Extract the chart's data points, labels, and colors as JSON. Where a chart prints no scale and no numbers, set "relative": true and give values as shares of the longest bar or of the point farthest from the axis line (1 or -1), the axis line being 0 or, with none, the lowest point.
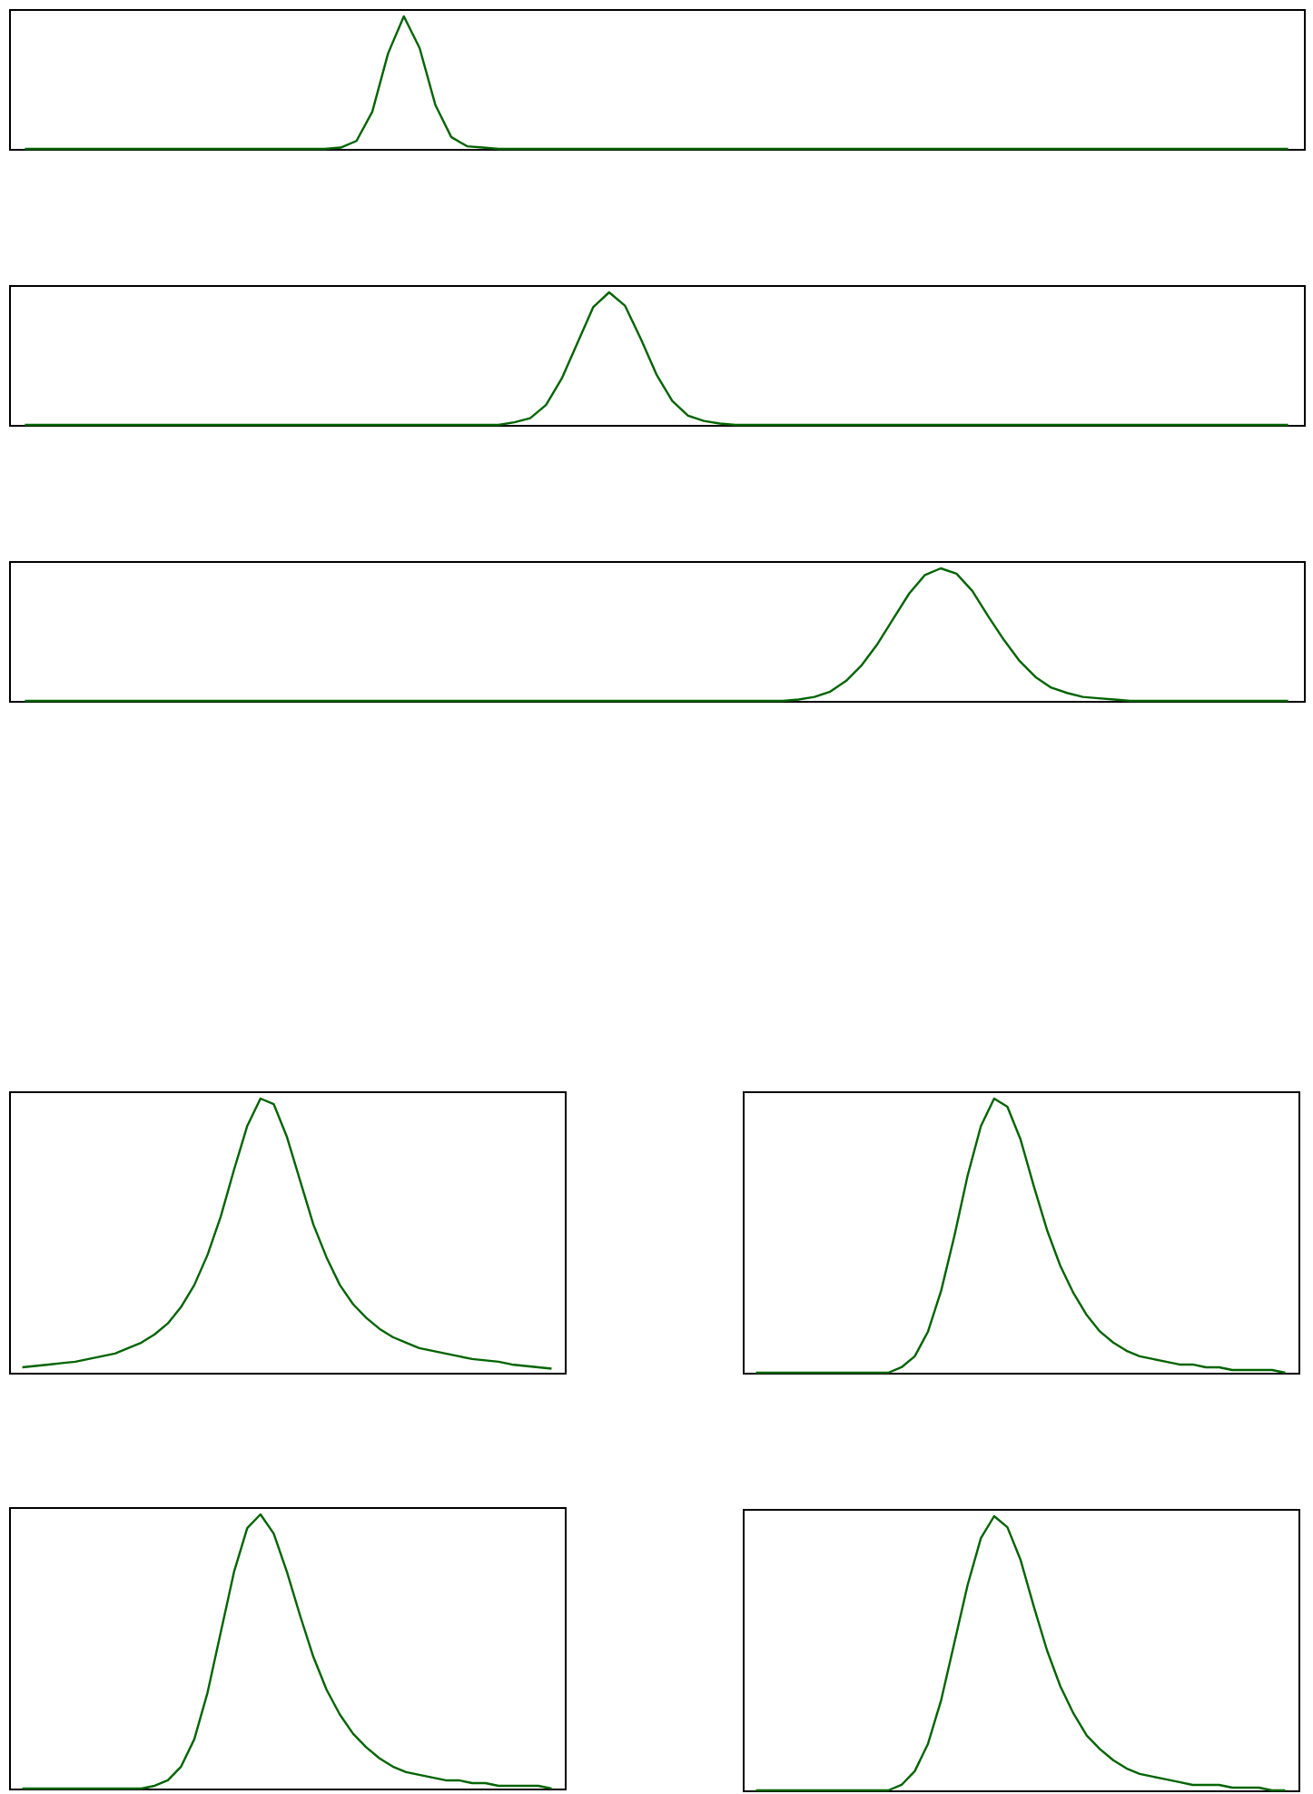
{
  "chart_data": [
    {
      "type": "line",
      "relative": true,
      "categories": [
        null,
        null,
        null,
        null,
        null,
        null,
        null,
        null,
        null,
        null,
        null,
        null,
        null,
        null,
        null,
        null,
        null,
        null,
        null,
        null,
        null,
        null,
        null,
        null,
        null,
        null,
        null,
        null,
        null,
        null,
        null,
        null,
        null,
        null,
        null,
        null,
        null,
        null,
        null,
        null,
        null,
        null,
        null,
        null,
        null,
        null,
        null,
        null,
        null,
        null,
        null,
        null,
        null,
        null,
        null,
        null,
        null,
        null,
        null,
        null,
        null,
        null,
        null,
        null,
        null,
        null,
        null,
        null,
        null,
        null,
        null,
        null,
        null,
        null,
        null,
        null,
        null,
        null,
        null,
        null,
        null
      ],
      "series": [
        {
          "color": "#006400",
          "values": [
            0,
            0,
            0,
            0,
            0,
            0,
            0,
            0,
            0,
            0,
            0,
            0,
            0,
            0,
            0,
            0,
            0,
            0,
            0,
            0,
            0.01,
            0.06,
            0.28,
            0.72,
            1,
            0.76,
            0.33,
            0.09,
            0.02,
            0.01,
            0,
            0,
            0,
            0,
            0,
            0,
            0,
            0,
            0,
            0,
            0,
            0,
            0,
            0,
            0,
            0,
            0,
            0,
            0,
            0,
            0,
            0,
            0,
            0,
            0,
            0,
            0,
            0,
            0,
            0,
            0,
            0,
            0,
            0,
            0,
            0,
            0,
            0,
            0,
            0,
            0,
            0,
            0,
            0,
            0,
            0,
            0,
            0,
            0,
            0,
            0
          ]
        }
      ]
    },
    {
      "type": "line",
      "relative": true,
      "categories": [
        null,
        null,
        null,
        null,
        null,
        null,
        null,
        null,
        null,
        null,
        null,
        null,
        null,
        null,
        null,
        null,
        null,
        null,
        null,
        null,
        null,
        null,
        null,
        null,
        null,
        null,
        null,
        null,
        null,
        null,
        null,
        null,
        null,
        null,
        null,
        null,
        null,
        null,
        null,
        null,
        null,
        null,
        null,
        null,
        null,
        null,
        null,
        null,
        null,
        null,
        null,
        null,
        null,
        null,
        null,
        null,
        null,
        null,
        null,
        null,
        null,
        null,
        null,
        null,
        null,
        null,
        null,
        null,
        null,
        null,
        null,
        null,
        null,
        null,
        null,
        null,
        null,
        null,
        null,
        null,
        null
      ],
      "series": [
        {
          "color": "#006400",
          "values": [
            0,
            0,
            0,
            0,
            0,
            0,
            0,
            0,
            0,
            0,
            0,
            0,
            0,
            0,
            0,
            0,
            0,
            0,
            0,
            0,
            0,
            0,
            0,
            0,
            0,
            0,
            0,
            0,
            0,
            0,
            0,
            0.02,
            0.05,
            0.15,
            0.35,
            0.62,
            0.89,
            1,
            0.9,
            0.65,
            0.38,
            0.18,
            0.07,
            0.03,
            0.01,
            0,
            0,
            0,
            0,
            0,
            0,
            0,
            0,
            0,
            0,
            0,
            0,
            0,
            0,
            0,
            0,
            0,
            0,
            0,
            0,
            0,
            0,
            0,
            0,
            0,
            0,
            0,
            0,
            0,
            0,
            0,
            0,
            0,
            0,
            0,
            0
          ]
        }
      ]
    },
    {
      "type": "line",
      "relative": true,
      "categories": [
        null,
        null,
        null,
        null,
        null,
        null,
        null,
        null,
        null,
        null,
        null,
        null,
        null,
        null,
        null,
        null,
        null,
        null,
        null,
        null,
        null,
        null,
        null,
        null,
        null,
        null,
        null,
        null,
        null,
        null,
        null,
        null,
        null,
        null,
        null,
        null,
        null,
        null,
        null,
        null,
        null,
        null,
        null,
        null,
        null,
        null,
        null,
        null,
        null,
        null,
        null,
        null,
        null,
        null,
        null,
        null,
        null,
        null,
        null,
        null,
        null,
        null,
        null,
        null,
        null,
        null,
        null,
        null,
        null,
        null,
        null,
        null,
        null,
        null,
        null,
        null,
        null,
        null,
        null,
        null,
        null
      ],
      "series": [
        {
          "color": "#006400",
          "values": [
            0,
            0,
            0,
            0,
            0,
            0,
            0,
            0,
            0,
            0,
            0,
            0,
            0,
            0,
            0,
            0,
            0,
            0,
            0,
            0,
            0,
            0,
            0,
            0,
            0,
            0,
            0,
            0,
            0,
            0,
            0,
            0,
            0,
            0,
            0,
            0,
            0,
            0,
            0,
            0,
            0,
            0,
            0,
            0,
            0,
            0,
            0,
            0,
            0,
            0.01,
            0.03,
            0.07,
            0.15,
            0.27,
            0.43,
            0.62,
            0.81,
            0.95,
            1,
            0.96,
            0.83,
            0.64,
            0.46,
            0.3,
            0.18,
            0.1,
            0.06,
            0.03,
            0.02,
            0.01,
            0,
            0,
            0,
            0,
            0,
            0,
            0,
            0,
            0,
            0,
            0
          ]
        }
      ]
    },
    {
      "type": "line",
      "relative": true,
      "categories": [
        null,
        null,
        null,
        null,
        null,
        null,
        null,
        null,
        null,
        null,
        null,
        null,
        null,
        null,
        null,
        null,
        null,
        null,
        null,
        null,
        null,
        null,
        null,
        null,
        null,
        null,
        null,
        null,
        null,
        null,
        null,
        null,
        null,
        null,
        null,
        null,
        null,
        null,
        null,
        null,
        null
      ],
      "series": [
        {
          "color": "#006400",
          "values": [
            0.02,
            0.025,
            0.03,
            0.035,
            0.04,
            0.05,
            0.06,
            0.07,
            0.09,
            0.11,
            0.14,
            0.18,
            0.24,
            0.32,
            0.43,
            0.57,
            0.74,
            0.9,
            1,
            0.98,
            0.86,
            0.7,
            0.54,
            0.42,
            0.32,
            0.25,
            0.2,
            0.16,
            0.13,
            0.11,
            0.09,
            0.08,
            0.07,
            0.06,
            0.05,
            0.045,
            0.04,
            0.03,
            0.025,
            0.02,
            0.015
          ]
        }
      ]
    },
    {
      "type": "line",
      "relative": true,
      "categories": [
        null,
        null,
        null,
        null,
        null,
        null,
        null,
        null,
        null,
        null,
        null,
        null,
        null,
        null,
        null,
        null,
        null,
        null,
        null,
        null,
        null,
        null,
        null,
        null,
        null,
        null,
        null,
        null,
        null,
        null,
        null,
        null,
        null,
        null,
        null,
        null,
        null,
        null,
        null,
        null,
        null
      ],
      "series": [
        {
          "color": "#006400",
          "values": [
            0,
            0,
            0,
            0,
            0,
            0,
            0,
            0,
            0,
            0,
            0,
            0.02,
            0.06,
            0.15,
            0.3,
            0.5,
            0.72,
            0.9,
            1,
            0.97,
            0.85,
            0.68,
            0.52,
            0.39,
            0.29,
            0.21,
            0.15,
            0.11,
            0.08,
            0.06,
            0.05,
            0.04,
            0.03,
            0.03,
            0.02,
            0.02,
            0.01,
            0.01,
            0.01,
            0.01,
            0
          ]
        }
      ]
    },
    {
      "type": "line",
      "relative": true,
      "categories": [
        null,
        null,
        null,
        null,
        null,
        null,
        null,
        null,
        null,
        null,
        null,
        null,
        null,
        null,
        null,
        null,
        null,
        null,
        null,
        null,
        null,
        null,
        null,
        null,
        null,
        null,
        null,
        null,
        null,
        null,
        null,
        null,
        null,
        null,
        null,
        null,
        null,
        null,
        null,
        null,
        null
      ],
      "series": [
        {
          "color": "#006400",
          "values": [
            0,
            0,
            0,
            0,
            0,
            0,
            0,
            0,
            0,
            0,
            0.01,
            0.03,
            0.08,
            0.18,
            0.35,
            0.57,
            0.79,
            0.95,
            1,
            0.93,
            0.79,
            0.63,
            0.48,
            0.36,
            0.27,
            0.2,
            0.15,
            0.11,
            0.08,
            0.06,
            0.05,
            0.04,
            0.03,
            0.03,
            0.02,
            0.02,
            0.01,
            0.01,
            0.01,
            0.01,
            0
          ]
        }
      ]
    },
    {
      "type": "line",
      "relative": true,
      "categories": [
        null,
        null,
        null,
        null,
        null,
        null,
        null,
        null,
        null,
        null,
        null,
        null,
        null,
        null,
        null,
        null,
        null,
        null,
        null,
        null,
        null,
        null,
        null,
        null,
        null,
        null,
        null,
        null,
        null,
        null,
        null,
        null,
        null,
        null,
        null,
        null,
        null,
        null,
        null,
        null,
        null
      ],
      "series": [
        {
          "color": "#006400",
          "values": [
            0,
            0,
            0,
            0,
            0,
            0,
            0,
            0,
            0,
            0,
            0,
            0.02,
            0.07,
            0.17,
            0.33,
            0.54,
            0.75,
            0.92,
            1,
            0.96,
            0.84,
            0.67,
            0.51,
            0.38,
            0.28,
            0.2,
            0.15,
            0.11,
            0.08,
            0.06,
            0.05,
            0.04,
            0.03,
            0.02,
            0.02,
            0.02,
            0.01,
            0.01,
            0.01,
            0,
            0
          ]
        }
      ]
    }
  ]
}
